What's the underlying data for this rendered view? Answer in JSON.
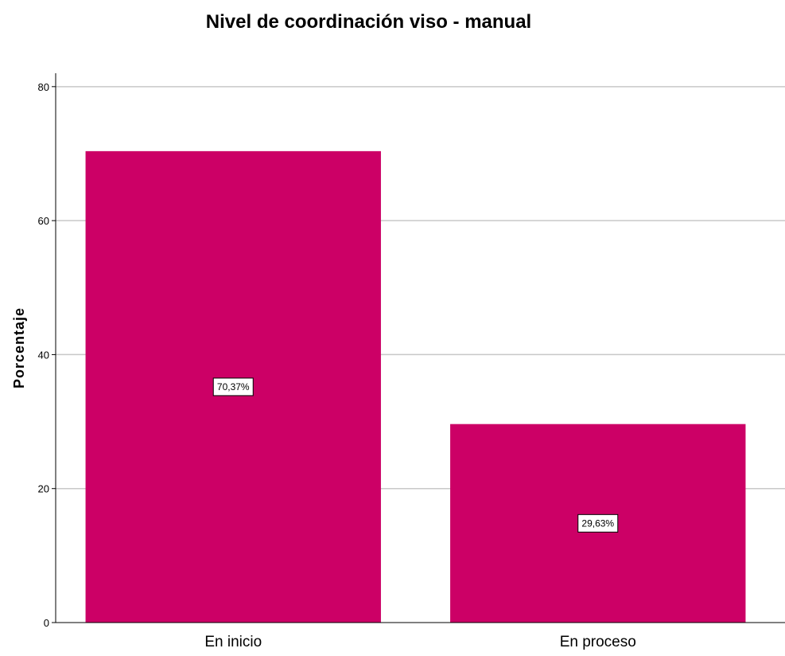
{
  "chart_data": {
    "type": "bar",
    "title": "Nivel de coordinación viso - manual",
    "xlabel": "",
    "ylabel": "Porcentaje",
    "categories": [
      "En inicio",
      "En proceso"
    ],
    "values": [
      70.37,
      29.63
    ],
    "data_labels": [
      "70,37%",
      "29,63%"
    ],
    "ylim": [
      0,
      82
    ],
    "yticks": [
      0,
      20,
      40,
      60,
      80
    ],
    "grid": true,
    "bar_color": "#cc0066"
  }
}
